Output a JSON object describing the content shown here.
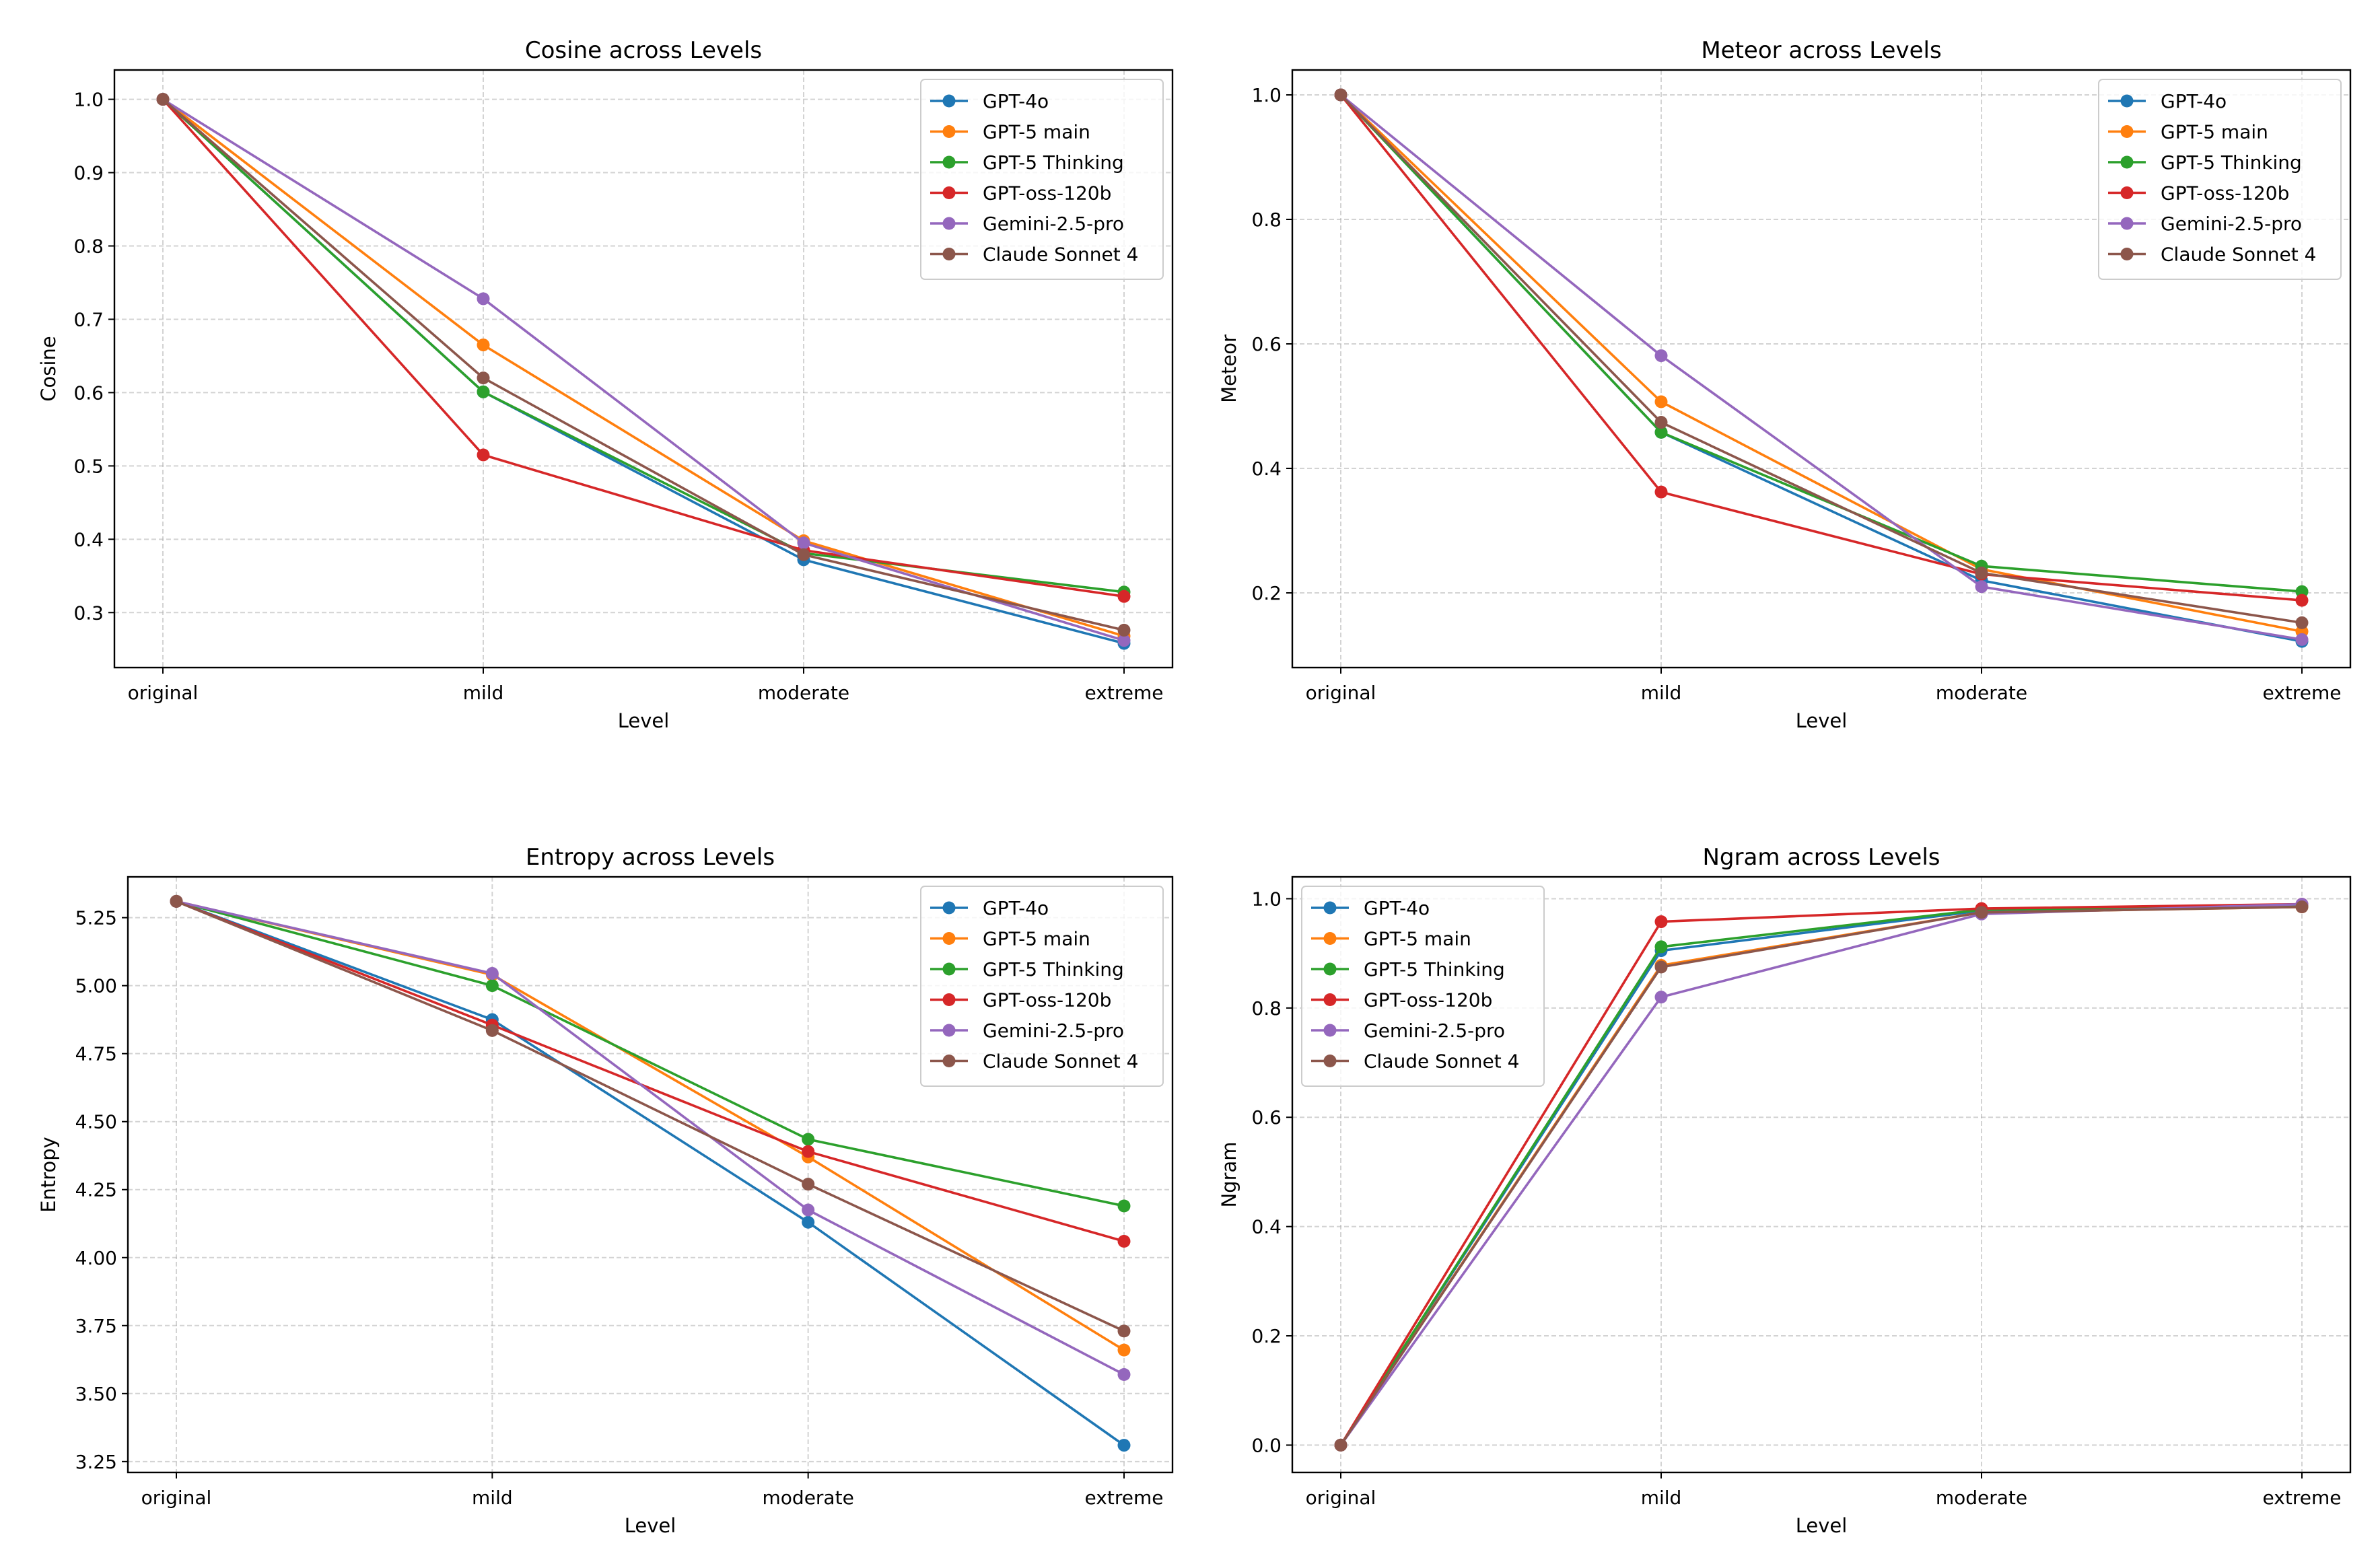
{
  "chart_data": [
    {
      "type": "line",
      "title": "Cosine across Levels",
      "xlabel": "Level",
      "ylabel": "Cosine",
      "categories": [
        "original",
        "mild",
        "moderate",
        "extreme"
      ],
      "ylim": [
        0.225,
        1.04
      ],
      "yticks": [
        "0.3",
        "0.4",
        "0.5",
        "0.6",
        "0.7",
        "0.8",
        "0.9",
        "1.0"
      ],
      "grid": true,
      "legend_position": "upper right",
      "series": [
        {
          "name": "GPT-4o",
          "color": "#1f77b4",
          "values": [
            1.0,
            0.601,
            0.372,
            0.258
          ]
        },
        {
          "name": "GPT-5 main",
          "color": "#ff7f0e",
          "values": [
            1.0,
            0.665,
            0.398,
            0.268
          ]
        },
        {
          "name": "GPT-5 Thinking",
          "color": "#2ca02c",
          "values": [
            1.0,
            0.601,
            0.381,
            0.328
          ]
        },
        {
          "name": "GPT-oss-120b",
          "color": "#d62728",
          "values": [
            1.0,
            0.515,
            0.385,
            0.322
          ]
        },
        {
          "name": "Gemini-2.5-pro",
          "color": "#9467bd",
          "values": [
            1.0,
            0.728,
            0.395,
            0.262
          ]
        },
        {
          "name": "Claude Sonnet 4",
          "color": "#8c564b",
          "values": [
            1.0,
            0.62,
            0.379,
            0.276
          ]
        }
      ]
    },
    {
      "type": "line",
      "title": "Meteor across Levels",
      "xlabel": "Level",
      "ylabel": "Meteor",
      "categories": [
        "original",
        "mild",
        "moderate",
        "extreme"
      ],
      "ylim": [
        0.08,
        1.04
      ],
      "yticks": [
        "0.2",
        "0.4",
        "0.6",
        "0.8",
        "1.0"
      ],
      "grid": true,
      "legend_position": "upper right",
      "series": [
        {
          "name": "GPT-4o",
          "color": "#1f77b4",
          "values": [
            1.0,
            0.458,
            0.22,
            0.122
          ]
        },
        {
          "name": "GPT-5 main",
          "color": "#ff7f0e",
          "values": [
            1.0,
            0.507,
            0.238,
            0.138
          ]
        },
        {
          "name": "GPT-5 Thinking",
          "color": "#2ca02c",
          "values": [
            1.0,
            0.458,
            0.243,
            0.202
          ]
        },
        {
          "name": "GPT-oss-120b",
          "color": "#d62728",
          "values": [
            1.0,
            0.362,
            0.23,
            0.188
          ]
        },
        {
          "name": "Gemini-2.5-pro",
          "color": "#9467bd",
          "values": [
            1.0,
            0.581,
            0.21,
            0.125
          ]
        },
        {
          "name": "Claude Sonnet 4",
          "color": "#8c564b",
          "values": [
            1.0,
            0.474,
            0.232,
            0.152
          ]
        }
      ]
    },
    {
      "type": "line",
      "title": "Entropy across Levels",
      "xlabel": "Level",
      "ylabel": "Entropy",
      "categories": [
        "original",
        "mild",
        "moderate",
        "extreme"
      ],
      "ylim": [
        3.21,
        5.4
      ],
      "yticks": [
        "3.25",
        "3.50",
        "3.75",
        "4.00",
        "4.25",
        "4.50",
        "4.75",
        "5.00",
        "5.25"
      ],
      "grid": true,
      "legend_position": "upper right",
      "series": [
        {
          "name": "GPT-4o",
          "color": "#1f77b4",
          "values": [
            5.31,
            4.875,
            4.13,
            3.31
          ]
        },
        {
          "name": "GPT-5 main",
          "color": "#ff7f0e",
          "values": [
            5.31,
            5.04,
            4.37,
            3.66
          ]
        },
        {
          "name": "GPT-5 Thinking",
          "color": "#2ca02c",
          "values": [
            5.31,
            5.0,
            4.435,
            4.19
          ]
        },
        {
          "name": "GPT-oss-120b",
          "color": "#d62728",
          "values": [
            5.31,
            4.855,
            4.39,
            4.06
          ]
        },
        {
          "name": "Gemini-2.5-pro",
          "color": "#9467bd",
          "values": [
            5.31,
            5.045,
            4.175,
            3.57
          ]
        },
        {
          "name": "Claude Sonnet 4",
          "color": "#8c564b",
          "values": [
            5.31,
            4.835,
            4.27,
            3.73
          ]
        }
      ]
    },
    {
      "type": "line",
      "title": "Ngram across Levels",
      "xlabel": "Level",
      "ylabel": "Ngram",
      "categories": [
        "original",
        "mild",
        "moderate",
        "extreme"
      ],
      "ylim": [
        -0.05,
        1.04
      ],
      "yticks": [
        "0.0",
        "0.2",
        "0.4",
        "0.6",
        "0.8",
        "1.0"
      ],
      "grid": true,
      "legend_position": "upper left",
      "series": [
        {
          "name": "GPT-4o",
          "color": "#1f77b4",
          "values": [
            0.0,
            0.905,
            0.978,
            0.988
          ]
        },
        {
          "name": "GPT-5 main",
          "color": "#ff7f0e",
          "values": [
            0.0,
            0.878,
            0.975,
            0.985
          ]
        },
        {
          "name": "GPT-5 Thinking",
          "color": "#2ca02c",
          "values": [
            0.0,
            0.912,
            0.98,
            0.988
          ]
        },
        {
          "name": "GPT-oss-120b",
          "color": "#d62728",
          "values": [
            0.0,
            0.958,
            0.982,
            0.99
          ]
        },
        {
          "name": "Gemini-2.5-pro",
          "color": "#9467bd",
          "values": [
            0.0,
            0.82,
            0.972,
            0.99
          ]
        },
        {
          "name": "Claude Sonnet 4",
          "color": "#8c564b",
          "values": [
            0.0,
            0.875,
            0.975,
            0.985
          ]
        }
      ]
    }
  ]
}
